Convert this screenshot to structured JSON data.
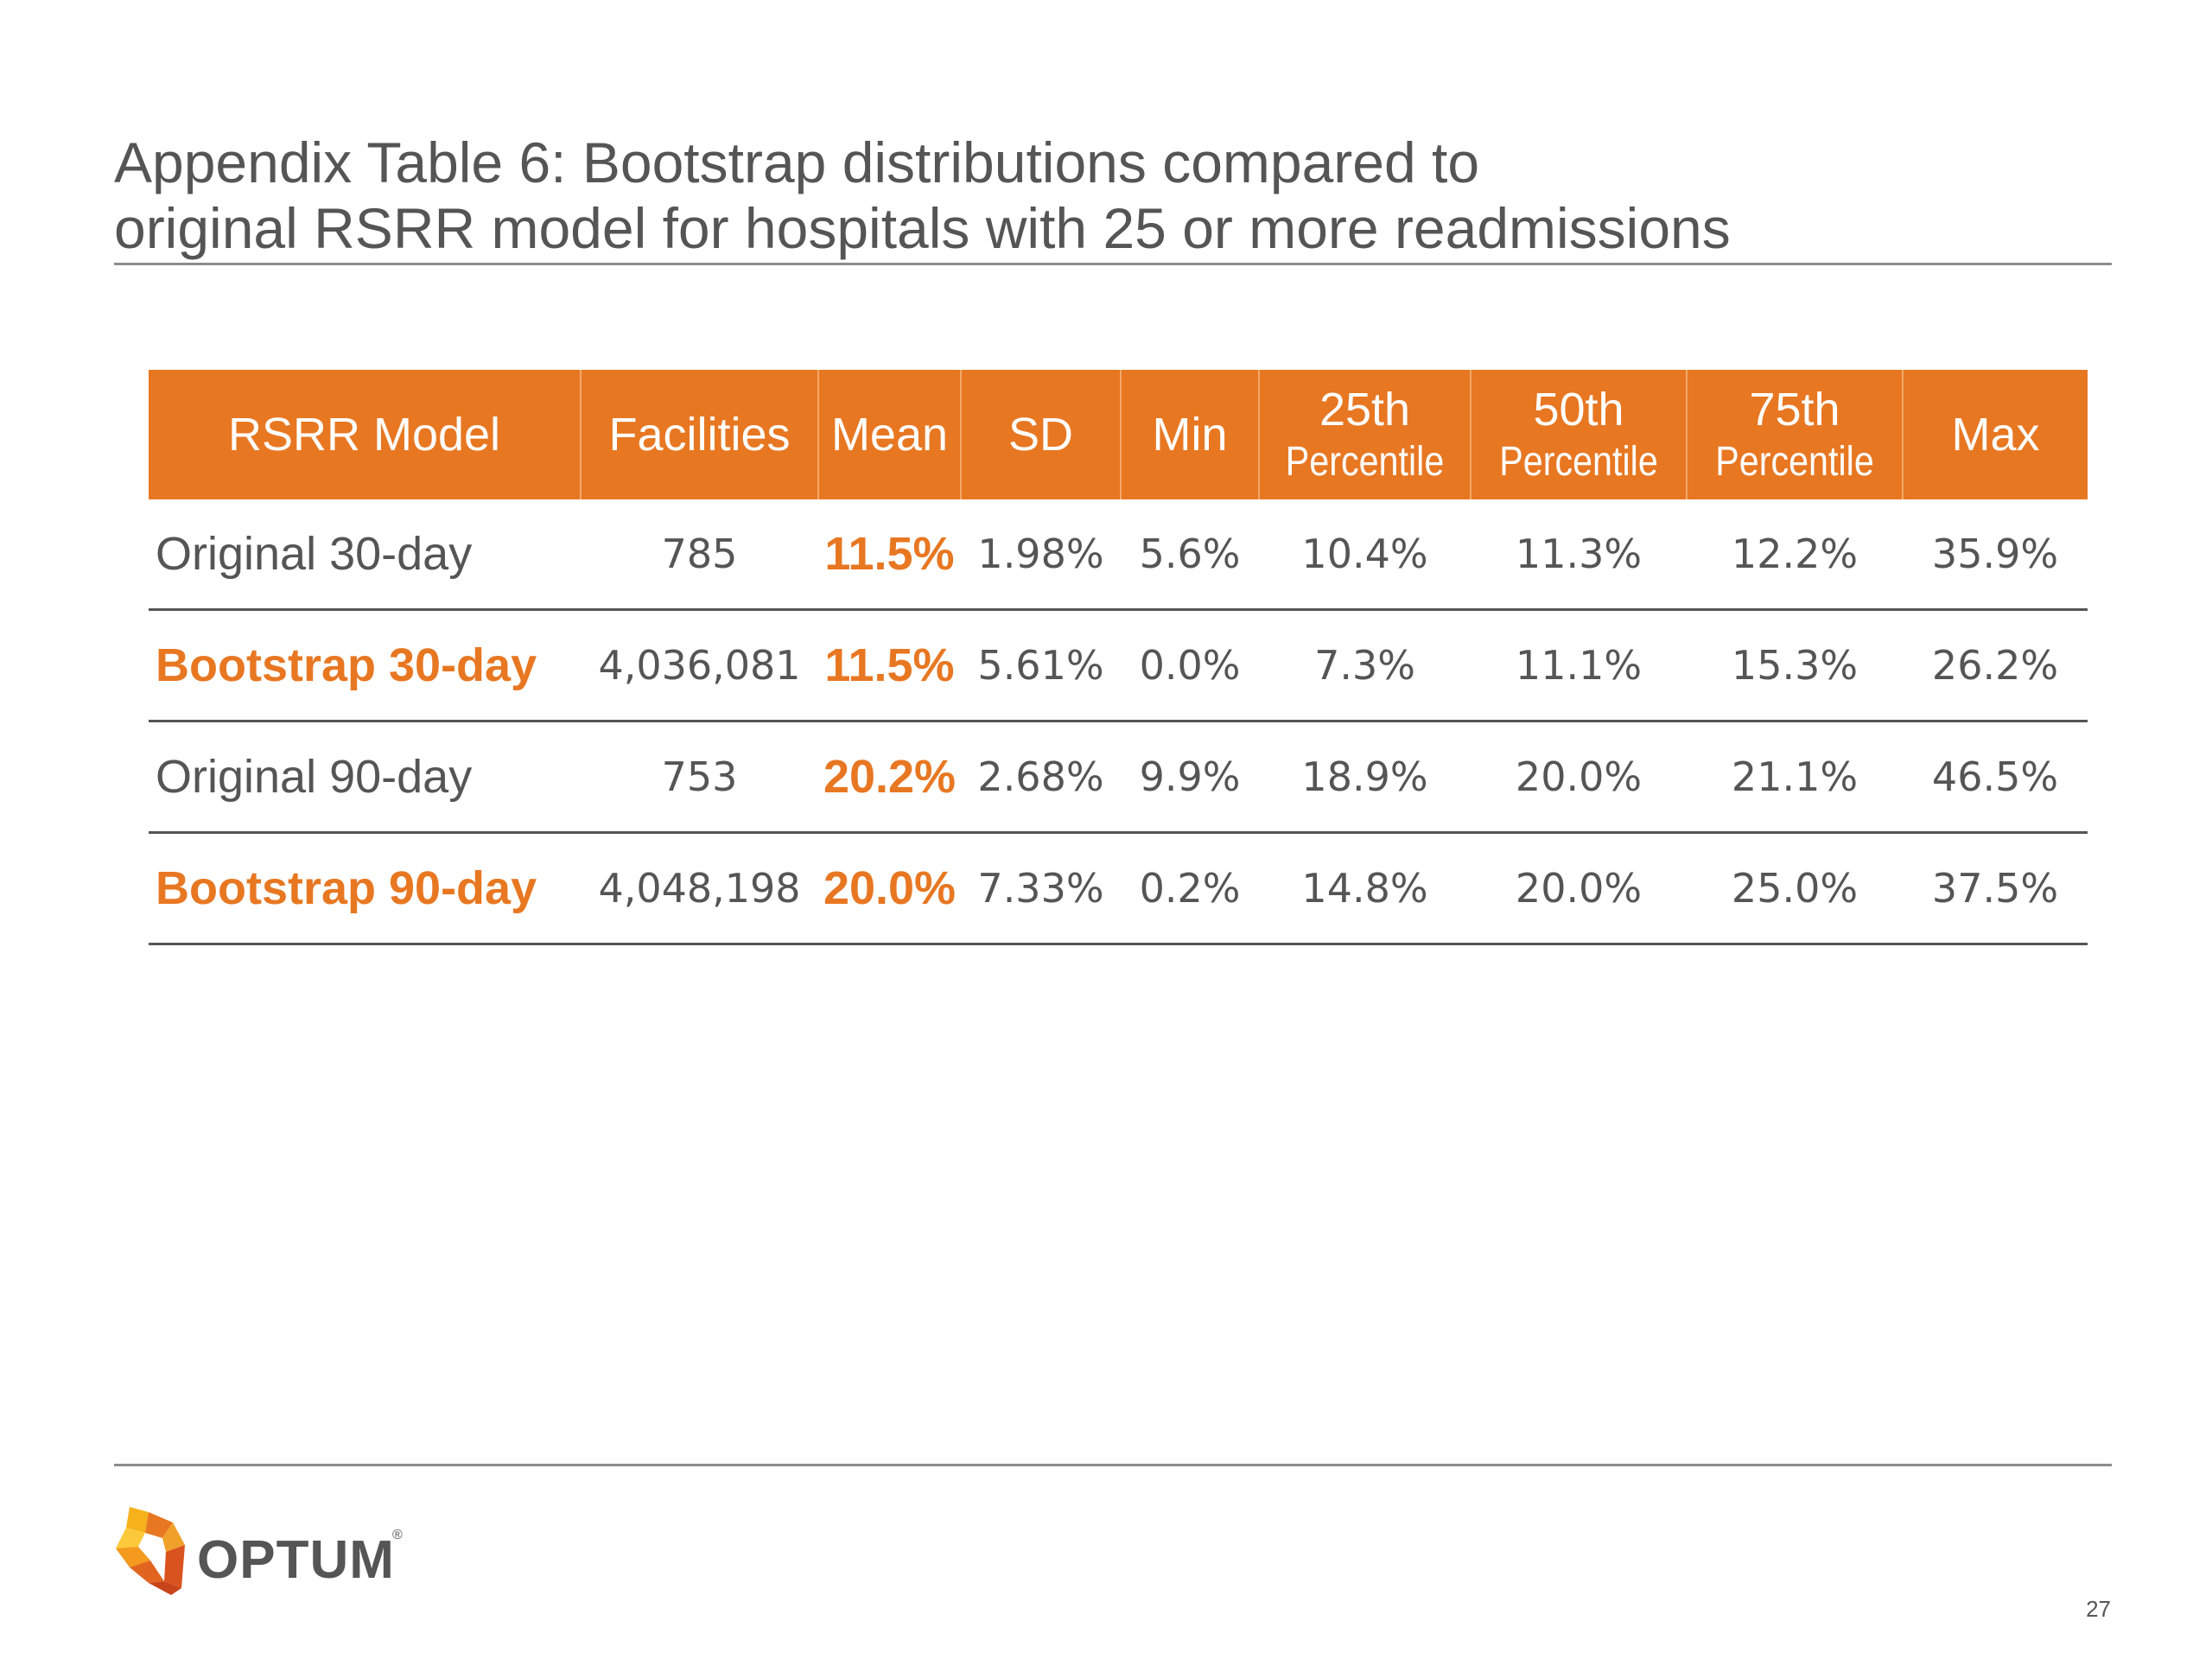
{
  "slide": {
    "title_line1": "Appendix Table 6: Bootstrap distributions compared to",
    "title_line2": "original RSRR model for hospitals with 25 or more readmissions",
    "page_number": "27"
  },
  "table": {
    "headers": {
      "model": "RSRR Model",
      "facilities": "Facilities",
      "mean": "Mean",
      "sd": "SD",
      "min": "Min",
      "p25_top": "25th",
      "p25_sub": "Percentile",
      "p50_top": "50th",
      "p50_sub": "Percentile",
      "p75_top": "75th",
      "p75_sub": "Percentile",
      "max": "Max"
    },
    "rows": [
      {
        "model": "Original 30-day",
        "facilities": "785",
        "mean": "11.5%",
        "sd": "1.98%",
        "min": "5.6%",
        "p25": "10.4%",
        "p50": "11.3%",
        "p75": "12.2%",
        "max": "35.9%"
      },
      {
        "model": "Bootstrap 30-day",
        "facilities": "4,036,081",
        "mean": "11.5%",
        "sd": "5.61%",
        "min": "0.0%",
        "p25": "7.3%",
        "p50": "11.1%",
        "p75": "15.3%",
        "max": "26.2%"
      },
      {
        "model": "Original 90-day",
        "facilities": "753",
        "mean": "20.2%",
        "sd": "2.68%",
        "min": "9.9%",
        "p25": "18.9%",
        "p50": "20.0%",
        "p75": "21.1%",
        "max": "46.5%"
      },
      {
        "model": "Bootstrap 90-day",
        "facilities": "4,048,198",
        "mean": "20.0%",
        "sd": "7.33%",
        "min": "0.2%",
        "p25": "14.8%",
        "p50": "20.0%",
        "p75": "25.0%",
        "max": "37.5%"
      }
    ]
  },
  "logo": {
    "wordmark": "OPTUM",
    "registered": "®"
  },
  "colors": {
    "accent": "#e87722",
    "text": "#555555",
    "rule": "#8c8c8c"
  }
}
